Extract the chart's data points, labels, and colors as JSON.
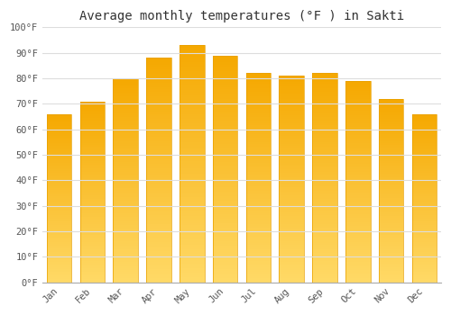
{
  "title": "Average monthly temperatures (°F ) in Sakti",
  "months": [
    "Jan",
    "Feb",
    "Mar",
    "Apr",
    "May",
    "Jun",
    "Jul",
    "Aug",
    "Sep",
    "Oct",
    "Nov",
    "Dec"
  ],
  "values": [
    66,
    71,
    80,
    88,
    93,
    89,
    82,
    81,
    82,
    79,
    72,
    66
  ],
  "bar_color_top": "#F5A800",
  "bar_color_bottom": "#FFD966",
  "bar_edge_color": "#E8A000",
  "background_color": "#FFFFFF",
  "grid_color": "#DDDDDD",
  "text_color": "#555555",
  "ylim": [
    0,
    100
  ],
  "ytick_step": 10,
  "title_fontsize": 10,
  "tick_fontsize": 7.5,
  "font_family": "monospace"
}
